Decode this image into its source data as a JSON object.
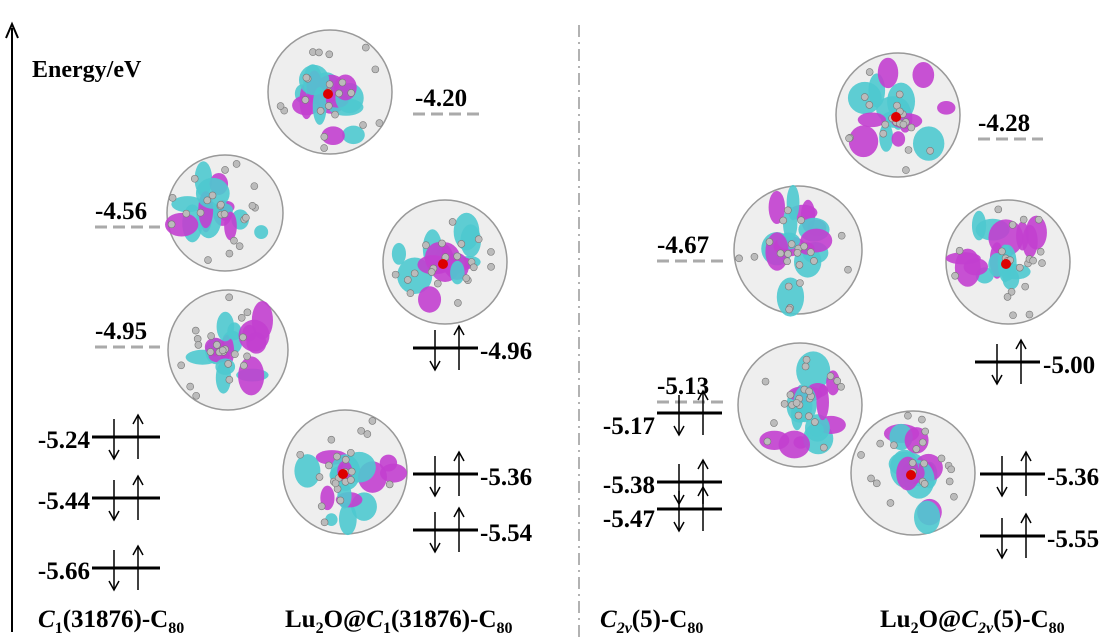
{
  "axis_label": "Energy/eV",
  "panels": [
    {
      "label": [
        {
          "text": "C",
          "style": "italic"
        },
        {
          "text": "1",
          "style": "sub"
        },
        {
          "text": "(31876)-C",
          "style": "normal"
        },
        {
          "text": "80",
          "style": "sub"
        }
      ],
      "levels": [
        {
          "energy": "-4.56",
          "kind": "unoccupied"
        },
        {
          "energy": "-4.95",
          "kind": "unoccupied"
        },
        {
          "energy": "-5.24",
          "kind": "occupied"
        },
        {
          "energy": "-5.44",
          "kind": "occupied"
        },
        {
          "energy": "-5.66",
          "kind": "occupied"
        }
      ]
    },
    {
      "label": [
        {
          "text": "Lu",
          "style": "normal"
        },
        {
          "text": "2",
          "style": "sub"
        },
        {
          "text": "O@",
          "style": "normal"
        },
        {
          "text": "C",
          "style": "italic"
        },
        {
          "text": "1",
          "style": "sub"
        },
        {
          "text": "(31876)-C",
          "style": "normal"
        },
        {
          "text": "80",
          "style": "sub"
        }
      ],
      "levels": [
        {
          "energy": "-4.20",
          "kind": "unoccupied"
        },
        {
          "energy": "-4.96",
          "kind": "occupied"
        },
        {
          "energy": "-5.36",
          "kind": "occupied"
        },
        {
          "energy": "-5.54",
          "kind": "occupied"
        }
      ]
    },
    {
      "label": [
        {
          "text": "C",
          "style": "italic"
        },
        {
          "text": "2v",
          "style": "italic-sub"
        },
        {
          "text": "(5)-C",
          "style": "normal"
        },
        {
          "text": "80",
          "style": "sub"
        }
      ],
      "levels": [
        {
          "energy": "-4.67",
          "kind": "unoccupied"
        },
        {
          "energy": "-5.13",
          "kind": "unoccupied"
        },
        {
          "energy": "-5.17",
          "kind": "occupied"
        },
        {
          "energy": "-5.38",
          "kind": "occupied"
        },
        {
          "energy": "-5.47",
          "kind": "occupied"
        }
      ]
    },
    {
      "label": [
        {
          "text": "Lu",
          "style": "normal"
        },
        {
          "text": "2",
          "style": "sub"
        },
        {
          "text": "O@",
          "style": "normal"
        },
        {
          "text": "C",
          "style": "italic"
        },
        {
          "text": "2v",
          "style": "italic-sub"
        },
        {
          "text": "(5)-C",
          "style": "normal"
        },
        {
          "text": "80",
          "style": "sub"
        }
      ],
      "levels": [
        {
          "energy": "-4.28",
          "kind": "unoccupied"
        },
        {
          "energy": "-5.00",
          "kind": "occupied"
        },
        {
          "energy": "-5.36",
          "kind": "occupied"
        },
        {
          "energy": "-5.55",
          "kind": "occupied"
        }
      ]
    }
  ]
}
